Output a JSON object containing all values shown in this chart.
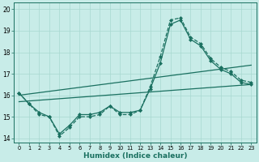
{
  "xlabel": "Humidex (Indice chaleur)",
  "bg_color": "#c8ece8",
  "grid_color": "#a8d8d0",
  "line_color": "#1a7060",
  "xlim": [
    -0.5,
    23.5
  ],
  "ylim": [
    13.8,
    20.3
  ],
  "yticks": [
    14,
    15,
    16,
    17,
    18,
    19,
    20
  ],
  "xticks": [
    0,
    1,
    2,
    3,
    4,
    5,
    6,
    7,
    8,
    9,
    10,
    11,
    12,
    13,
    14,
    15,
    16,
    17,
    18,
    19,
    20,
    21,
    22,
    23
  ],
  "series": [
    {
      "x": [
        0,
        1,
        2,
        3,
        4,
        5,
        6,
        7,
        8,
        9,
        10,
        11,
        12,
        13,
        14,
        15,
        16,
        17,
        18,
        19,
        20,
        21,
        22,
        23
      ],
      "y": [
        16.1,
        15.6,
        15.1,
        15.0,
        14.1,
        14.5,
        15.0,
        15.0,
        15.1,
        15.5,
        15.1,
        15.1,
        15.3,
        16.4,
        17.8,
        19.5,
        19.6,
        18.7,
        18.4,
        17.7,
        17.3,
        17.1,
        16.7,
        16.6
      ],
      "marker": "D",
      "markersize": 2.0,
      "linewidth": 0.9,
      "linestyle": "--"
    },
    {
      "x": [
        0,
        1,
        2,
        3,
        4,
        5,
        6,
        7,
        8,
        9,
        10,
        11,
        12,
        13,
        14,
        15,
        16,
        17,
        18,
        19,
        20,
        21,
        22,
        23
      ],
      "y": [
        16.1,
        15.6,
        15.2,
        15.0,
        14.2,
        14.6,
        15.1,
        15.1,
        15.2,
        15.5,
        15.2,
        15.2,
        15.3,
        16.3,
        17.5,
        19.3,
        19.5,
        18.6,
        18.3,
        17.6,
        17.2,
        17.0,
        16.6,
        16.5
      ],
      "marker": "D",
      "markersize": 2.0,
      "linewidth": 0.9,
      "linestyle": "-"
    },
    {
      "x": [
        0,
        23
      ],
      "y": [
        15.7,
        16.5
      ],
      "marker": null,
      "markersize": 0,
      "linewidth": 0.9,
      "linestyle": "-"
    },
    {
      "x": [
        0,
        23
      ],
      "y": [
        16.0,
        17.4
      ],
      "marker": null,
      "markersize": 0,
      "linewidth": 0.9,
      "linestyle": "-"
    }
  ]
}
